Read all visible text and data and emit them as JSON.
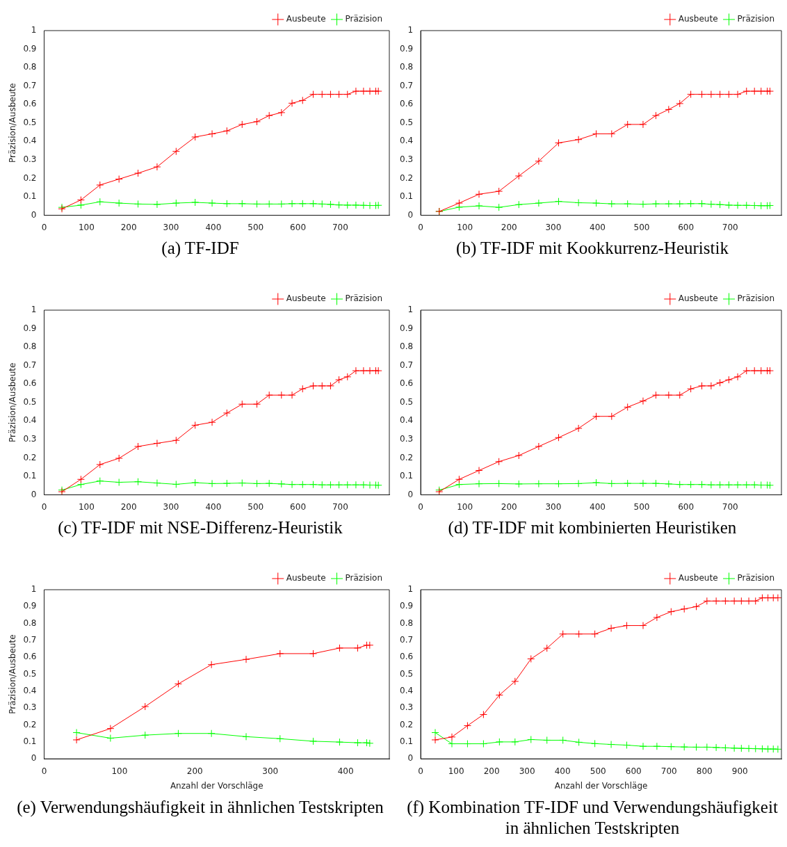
{
  "chart_data": [
    {
      "type": "line",
      "title": "(a) TF-IDF",
      "ylabel": "Präzision/Ausbeute",
      "x": [
        42,
        87,
        132,
        177,
        222,
        267,
        312,
        357,
        397,
        432,
        468,
        503,
        532,
        561,
        586,
        611,
        636,
        657,
        677,
        697,
        717,
        737,
        755,
        770,
        784,
        790
      ],
      "xlim": [
        0,
        816
      ],
      "xticks": [
        0,
        100,
        200,
        300,
        400,
        500,
        600,
        700
      ],
      "ylim": [
        0,
        1
      ],
      "yticks": [
        0,
        0.1,
        0.2,
        0.3,
        0.4,
        0.5,
        0.6,
        0.7,
        0.8,
        0.9,
        1
      ],
      "grid": false,
      "legend": "top right",
      "marker": "cross",
      "series": [
        {
          "name": "Ausbeute",
          "color": "#ff0000",
          "values": [
            0.035,
            0.083,
            0.164,
            0.196,
            0.228,
            0.262,
            0.346,
            0.424,
            0.441,
            0.457,
            0.492,
            0.507,
            0.54,
            0.556,
            0.607,
            0.622,
            0.655,
            0.655,
            0.655,
            0.655,
            0.655,
            0.672,
            0.672,
            0.672,
            0.672,
            0.672
          ]
        },
        {
          "name": "Präzision",
          "color": "#00ff00",
          "values": [
            0.043,
            0.055,
            0.073,
            0.066,
            0.061,
            0.059,
            0.066,
            0.07,
            0.066,
            0.063,
            0.063,
            0.061,
            0.061,
            0.061,
            0.063,
            0.063,
            0.063,
            0.061,
            0.059,
            0.056,
            0.055,
            0.055,
            0.054,
            0.053,
            0.053,
            0.054
          ]
        }
      ]
    },
    {
      "type": "line",
      "title": "(b) TF-IDF mit Kookkurrenz-Heuristik",
      "x": [
        42,
        87,
        132,
        177,
        222,
        267,
        312,
        357,
        397,
        432,
        468,
        503,
        532,
        561,
        586,
        611,
        636,
        657,
        677,
        697,
        717,
        737,
        755,
        770,
        784,
        790
      ],
      "xlim": [
        0,
        816
      ],
      "xticks": [
        0,
        100,
        200,
        300,
        400,
        500,
        600,
        700
      ],
      "ylim": [
        0,
        1
      ],
      "yticks": [
        0,
        0.1,
        0.2,
        0.3,
        0.4,
        0.5,
        0.6,
        0.7,
        0.8,
        0.9,
        1
      ],
      "grid": false,
      "legend": "top right",
      "marker": "cross",
      "series": [
        {
          "name": "Ausbeute",
          "color": "#ff0000",
          "values": [
            0.021,
            0.066,
            0.114,
            0.13,
            0.213,
            0.293,
            0.392,
            0.41,
            0.441,
            0.441,
            0.492,
            0.492,
            0.54,
            0.573,
            0.605,
            0.655,
            0.655,
            0.655,
            0.655,
            0.655,
            0.655,
            0.672,
            0.672,
            0.672,
            0.672,
            0.672
          ]
        },
        {
          "name": "Präzision",
          "color": "#00ff00",
          "values": [
            0.021,
            0.044,
            0.051,
            0.043,
            0.058,
            0.066,
            0.075,
            0.068,
            0.066,
            0.062,
            0.062,
            0.06,
            0.062,
            0.062,
            0.062,
            0.063,
            0.063,
            0.06,
            0.058,
            0.055,
            0.054,
            0.054,
            0.053,
            0.052,
            0.052,
            0.053
          ]
        }
      ]
    },
    {
      "type": "line",
      "title": "(c) TF-IDF mit NSE-Differenz-Heuristik",
      "ylabel": "Präzision/Ausbeute",
      "x": [
        42,
        87,
        132,
        177,
        222,
        267,
        312,
        357,
        397,
        432,
        468,
        503,
        532,
        561,
        586,
        611,
        636,
        657,
        677,
        697,
        717,
        737,
        755,
        770,
        784,
        790
      ],
      "xlim": [
        0,
        816
      ],
      "xticks": [
        0,
        100,
        200,
        300,
        400,
        500,
        600,
        700
      ],
      "ylim": [
        0,
        1
      ],
      "yticks": [
        0,
        0.1,
        0.2,
        0.3,
        0.4,
        0.5,
        0.6,
        0.7,
        0.8,
        0.9,
        1
      ],
      "grid": false,
      "legend": "top right",
      "marker": "cross",
      "series": [
        {
          "name": "Ausbeute",
          "color": "#ff0000",
          "values": [
            0.017,
            0.084,
            0.164,
            0.198,
            0.262,
            0.279,
            0.295,
            0.377,
            0.393,
            0.443,
            0.491,
            0.491,
            0.54,
            0.54,
            0.54,
            0.574,
            0.59,
            0.59,
            0.59,
            0.623,
            0.639,
            0.672,
            0.672,
            0.672,
            0.672,
            0.672
          ]
        },
        {
          "name": "Präzision",
          "color": "#00ff00",
          "values": [
            0.026,
            0.056,
            0.075,
            0.068,
            0.071,
            0.064,
            0.057,
            0.066,
            0.061,
            0.062,
            0.064,
            0.061,
            0.062,
            0.059,
            0.056,
            0.056,
            0.056,
            0.054,
            0.054,
            0.054,
            0.054,
            0.054,
            0.054,
            0.053,
            0.053,
            0.052
          ]
        }
      ]
    },
    {
      "type": "line",
      "title": "(d) TF-IDF mit kombinierten Heuristiken",
      "x": [
        42,
        87,
        132,
        177,
        222,
        267,
        312,
        357,
        397,
        432,
        468,
        503,
        532,
        561,
        586,
        611,
        636,
        657,
        677,
        697,
        717,
        737,
        755,
        770,
        784,
        790
      ],
      "xlim": [
        0,
        816
      ],
      "xticks": [
        0,
        100,
        200,
        300,
        400,
        500,
        600,
        700
      ],
      "ylim": [
        0,
        1
      ],
      "yticks": [
        0,
        0.1,
        0.2,
        0.3,
        0.4,
        0.5,
        0.6,
        0.7,
        0.8,
        0.9,
        1
      ],
      "grid": false,
      "legend": "top right",
      "marker": "cross",
      "series": [
        {
          "name": "Ausbeute",
          "color": "#ff0000",
          "values": [
            0.017,
            0.084,
            0.132,
            0.18,
            0.213,
            0.262,
            0.31,
            0.36,
            0.425,
            0.425,
            0.475,
            0.508,
            0.54,
            0.54,
            0.54,
            0.574,
            0.59,
            0.59,
            0.607,
            0.623,
            0.639,
            0.672,
            0.672,
            0.672,
            0.672,
            0.672
          ]
        },
        {
          "name": "Präzision",
          "color": "#00ff00",
          "values": [
            0.026,
            0.056,
            0.06,
            0.061,
            0.059,
            0.06,
            0.06,
            0.061,
            0.066,
            0.061,
            0.062,
            0.062,
            0.062,
            0.059,
            0.056,
            0.056,
            0.056,
            0.054,
            0.054,
            0.054,
            0.054,
            0.054,
            0.054,
            0.053,
            0.053,
            0.052
          ]
        }
      ]
    },
    {
      "type": "line",
      "title": "(e) Verwendungshäufigkeit in ähnlichen Testskripten",
      "xlabel": "Anzahl der Vorschläge",
      "ylabel": "Präzision/Ausbeute",
      "x": [
        43,
        88,
        134,
        178,
        222,
        268,
        313,
        357,
        392,
        416,
        428,
        432
      ],
      "xlim": [
        0,
        458
      ],
      "xticks": [
        0,
        100,
        200,
        300,
        400
      ],
      "ylim": [
        0,
        1
      ],
      "yticks": [
        0,
        0.1,
        0.2,
        0.3,
        0.4,
        0.5,
        0.6,
        0.7,
        0.8,
        0.9,
        1
      ],
      "grid": false,
      "legend": "top right",
      "marker": "cross",
      "series": [
        {
          "name": "Ausbeute",
          "color": "#ff0000",
          "values": [
            0.112,
            0.179,
            0.309,
            0.443,
            0.557,
            0.588,
            0.622,
            0.622,
            0.655,
            0.655,
            0.672,
            0.672
          ]
        },
        {
          "name": "Präzision",
          "color": "#00ff00",
          "values": [
            0.155,
            0.122,
            0.14,
            0.15,
            0.15,
            0.131,
            0.119,
            0.104,
            0.099,
            0.095,
            0.095,
            0.092
          ]
        }
      ]
    },
    {
      "type": "line",
      "title": "(f) Kombination TF-IDF und Verwendungshäufigkeit in ähnlichen Testskripten",
      "xlabel": "Anzahl der Vorschläge",
      "x": [
        41,
        88,
        132,
        177,
        222,
        266,
        311,
        356,
        401,
        446,
        491,
        537,
        581,
        627,
        666,
        706,
        743,
        777,
        807,
        833,
        859,
        884,
        904,
        925,
        944,
        963,
        979,
        994,
        1007
      ],
      "xlim": [
        0,
        1017
      ],
      "xticks": [
        0,
        100,
        200,
        300,
        400,
        500,
        600,
        700,
        800,
        900
      ],
      "ylim": [
        0,
        1
      ],
      "yticks": [
        0,
        0.1,
        0.2,
        0.3,
        0.4,
        0.5,
        0.6,
        0.7,
        0.8,
        0.9,
        1
      ],
      "grid": false,
      "legend": "top right",
      "marker": "cross",
      "series": [
        {
          "name": "Ausbeute",
          "color": "#ff0000",
          "values": [
            0.112,
            0.129,
            0.196,
            0.262,
            0.377,
            0.458,
            0.591,
            0.654,
            0.738,
            0.738,
            0.738,
            0.772,
            0.788,
            0.788,
            0.836,
            0.87,
            0.886,
            0.9,
            0.933,
            0.933,
            0.933,
            0.933,
            0.933,
            0.933,
            0.933,
            0.952,
            0.952,
            0.952,
            0.952
          ]
        },
        {
          "name": "Präzision",
          "color": "#00ff00",
          "values": [
            0.155,
            0.089,
            0.089,
            0.089,
            0.1,
            0.1,
            0.114,
            0.11,
            0.11,
            0.098,
            0.09,
            0.085,
            0.081,
            0.074,
            0.074,
            0.072,
            0.07,
            0.069,
            0.069,
            0.067,
            0.065,
            0.063,
            0.062,
            0.061,
            0.06,
            0.059,
            0.058,
            0.058,
            0.057
          ]
        }
      ]
    }
  ]
}
